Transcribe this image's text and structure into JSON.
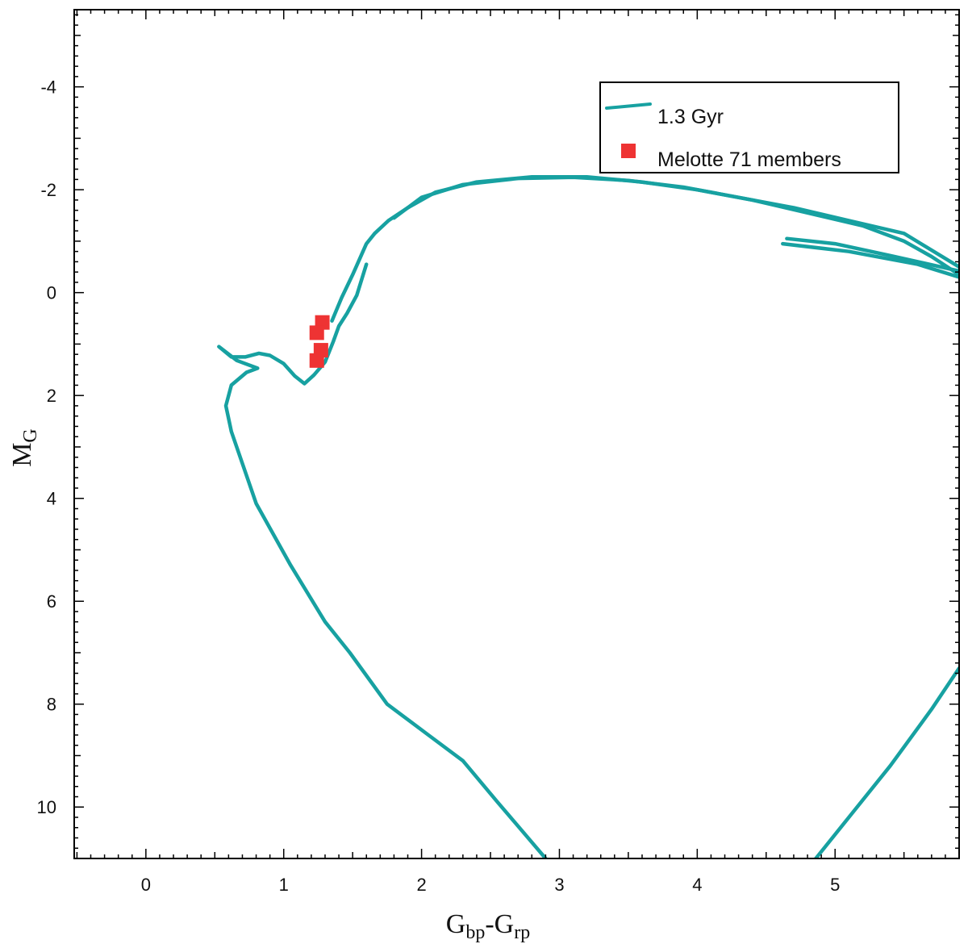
{
  "chart_data": {
    "type": "scatter",
    "xlabel": {
      "main1": "G",
      "sub1": "bp",
      "sep": "-",
      "main2": "G",
      "sub2": "rp"
    },
    "ylabel": {
      "main": "M",
      "sub": "G"
    },
    "xlim": [
      -0.52,
      5.9
    ],
    "ylim": [
      11.0,
      -5.5
    ],
    "y_inverted": true,
    "x_ticks": [
      0,
      1,
      2,
      3,
      4,
      5
    ],
    "x_tick_labels": [
      "0",
      "1",
      "2",
      "3",
      "4",
      "5"
    ],
    "y_ticks": [
      -4,
      -2,
      0,
      2,
      4,
      6,
      8,
      10
    ],
    "y_tick_labels": [
      "-4",
      "-2",
      "0",
      "2",
      "4",
      "6",
      "8",
      "10"
    ],
    "grid": false,
    "legend_position": "top-right",
    "series": [
      {
        "name": "1.3 Gyr",
        "kind": "line",
        "color": "#17a1a1",
        "segments": [
          [
            [
              2.9,
              11.0
            ],
            [
              2.55,
              9.9
            ],
            [
              2.3,
              9.1
            ],
            [
              2.05,
              8.6
            ],
            [
              1.75,
              8.0
            ],
            [
              1.48,
              7.0
            ],
            [
              1.3,
              6.4
            ],
            [
              1.05,
              5.3
            ],
            [
              0.8,
              4.1
            ],
            [
              0.62,
              2.7
            ],
            [
              0.58,
              2.2
            ],
            [
              0.62,
              1.8
            ],
            [
              0.73,
              1.55
            ],
            [
              0.81,
              1.47
            ],
            [
              0.66,
              1.32
            ],
            [
              0.53,
              1.05
            ],
            [
              0.62,
              1.25
            ],
            [
              0.72,
              1.25
            ],
            [
              0.82,
              1.18
            ],
            [
              0.9,
              1.22
            ],
            [
              1.0,
              1.38
            ],
            [
              1.08,
              1.62
            ],
            [
              1.15,
              1.77
            ],
            [
              1.22,
              1.6
            ],
            [
              1.3,
              1.35
            ],
            [
              1.36,
              0.95
            ],
            [
              1.4,
              0.65
            ],
            [
              1.46,
              0.4
            ],
            [
              1.53,
              0.05
            ],
            [
              1.6,
              -0.55
            ]
          ],
          [
            [
              1.35,
              0.55
            ],
            [
              1.42,
              0.1
            ],
            [
              1.5,
              -0.35
            ],
            [
              1.6,
              -0.95
            ],
            [
              1.66,
              -1.15
            ],
            [
              1.76,
              -1.4
            ],
            [
              1.9,
              -1.65
            ],
            [
              2.1,
              -1.95
            ],
            [
              2.4,
              -2.15
            ],
            [
              2.8,
              -2.25
            ],
            [
              3.2,
              -2.25
            ],
            [
              3.6,
              -2.15
            ],
            [
              4.0,
              -2.0
            ],
            [
              4.4,
              -1.8
            ],
            [
              4.8,
              -1.55
            ],
            [
              5.2,
              -1.3
            ],
            [
              5.5,
              -1.0
            ],
            [
              5.7,
              -0.7
            ],
            [
              5.9,
              -0.35
            ]
          ],
          [
            [
              1.8,
              -1.45
            ],
            [
              2.0,
              -1.85
            ],
            [
              2.3,
              -2.1
            ],
            [
              2.7,
              -2.22
            ],
            [
              3.1,
              -2.24
            ],
            [
              3.5,
              -2.18
            ],
            [
              3.9,
              -2.05
            ],
            [
              4.3,
              -1.85
            ],
            [
              4.7,
              -1.65
            ],
            [
              5.1,
              -1.4
            ],
            [
              5.5,
              -1.15
            ],
            [
              5.9,
              -0.5
            ]
          ],
          [
            [
              4.65,
              -1.05
            ],
            [
              5.0,
              -0.95
            ],
            [
              5.4,
              -0.72
            ],
            [
              5.9,
              -0.42
            ]
          ],
          [
            [
              4.62,
              -0.95
            ],
            [
              5.1,
              -0.8
            ],
            [
              5.6,
              -0.55
            ],
            [
              5.9,
              -0.3
            ]
          ],
          [
            [
              4.86,
              11.0
            ],
            [
              5.1,
              10.2
            ],
            [
              5.4,
              9.2
            ],
            [
              5.7,
              8.1
            ],
            [
              5.9,
              7.3
            ]
          ]
        ]
      },
      {
        "name": "Melotte 71 members",
        "kind": "scatter",
        "color": "#ee3333",
        "marker": "square",
        "points": [
          [
            1.28,
            0.58
          ],
          [
            1.24,
            0.78
          ],
          [
            1.27,
            1.12
          ],
          [
            1.24,
            1.32
          ]
        ]
      }
    ]
  }
}
